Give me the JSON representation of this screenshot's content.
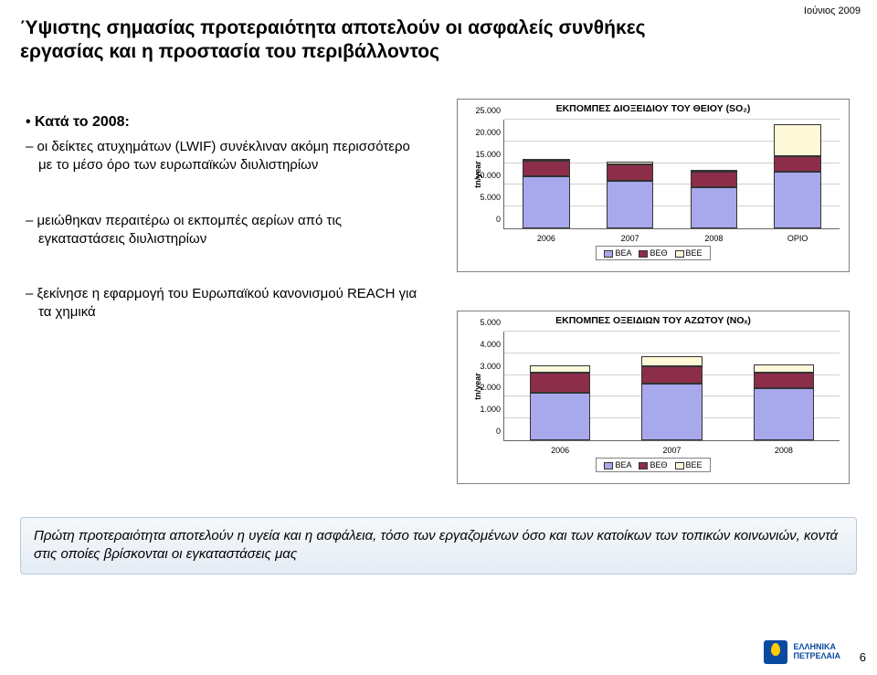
{
  "date_stamp": "Ιούνιος 2009",
  "title": "Ύψιστης σημασίας προτεραιότητα αποτελούν οι ασφαλείς συνθήκες εργασίας και η προστασία του περιβάλλοντος",
  "main_bullet": "• Κατά το 2008:",
  "subs": [
    "οι δείκτες ατυχημάτων (LWIF) συνέκλιναν ακόμη περισσότερο με το μέσο όρο των ευρωπαϊκών διυλιστηρίων",
    "μειώθηκαν περαιτέρω οι εκπομπές αερίων από τις εγκαταστάσεις διυλιστηρίων",
    "ξεκίνησε η εφαρμογή του Ευρωπαϊκού κανονισμού REACH για τα χημικά"
  ],
  "highlight": "Πρώτη προτεραιότητα αποτελούν η υγεία και η ασφάλεια, τόσο των εργαζομένων όσο και των κατοίκων των τοπικών κοινωνιών, κοντά στις οποίες βρίσκονται οι εγκαταστάσεις μας",
  "page_number": "6",
  "logo_line1": "ΕΛΛΗΝΙΚΑ",
  "logo_line2": "ΠΕΤΡΕΛΑΙΑ",
  "chart_top": {
    "title": "ΕΚΠΟΜΠΕΣ ΔΙΟΞΕΙΔΙΟΥ ΤΟΥ ΘΕΙΟΥ (SO₂)",
    "ylabel": "tn/year",
    "ymax": 25000,
    "yticks": [
      0,
      5000,
      10000,
      15000,
      20000,
      25000
    ],
    "ytick_labels": [
      "0",
      "5.000",
      "10.000",
      "15.000",
      "20.000",
      "25.000"
    ],
    "categories": [
      "2006",
      "2007",
      "2008",
      "ΟΡΙΟ"
    ],
    "series_labels": [
      "ΒΕΑ",
      "ΒΕΘ",
      "ΒΕΕ"
    ],
    "series_colors": [
      "#a8a8ec",
      "#8c2d4a",
      "#fcf8d8"
    ],
    "stacks": [
      [
        12000,
        3500,
        500
      ],
      [
        11000,
        3700,
        550
      ],
      [
        9500,
        3500,
        300
      ],
      [
        13000,
        3500,
        7500
      ]
    ],
    "bar_width_pct": 14
  },
  "chart_bottom": {
    "title": "ΕΚΠΟΜΠΕΣ ΟΞΕΙΔΙΩΝ ΤΟΥ ΑΖΩΤΟΥ (NOₓ)",
    "ylabel": "tn/year",
    "ymax": 5000,
    "yticks": [
      0,
      1000,
      2000,
      3000,
      4000,
      5000
    ],
    "ytick_labels": [
      "0",
      "1.000",
      "2.000",
      "3.000",
      "4.000",
      "5.000"
    ],
    "categories": [
      "2006",
      "2007",
      "2008"
    ],
    "series_labels": [
      "ΒΕΑ",
      "ΒΕΘ",
      "ΒΕΕ"
    ],
    "series_colors": [
      "#a8a8ec",
      "#8c2d4a",
      "#fcf8d8"
    ],
    "stacks": [
      [
        2200,
        900,
        350
      ],
      [
        2600,
        820,
        430
      ],
      [
        2400,
        700,
        380
      ]
    ],
    "bar_width_pct": 18
  }
}
